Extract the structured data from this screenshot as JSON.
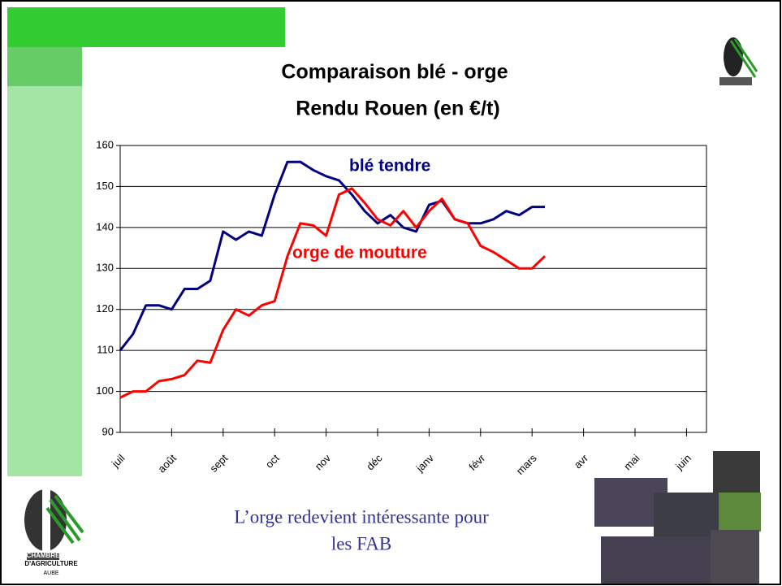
{
  "chart_data": {
    "type": "line",
    "title": [
      "Comparaison blé - orge",
      "Rendu Rouen (en €/t)"
    ],
    "categories": [
      "juil",
      null,
      null,
      null,
      "août",
      null,
      null,
      null,
      "sept",
      null,
      null,
      null,
      "oct",
      null,
      null,
      null,
      "nov",
      null,
      null,
      null,
      "déc",
      null,
      null,
      null,
      "janv",
      null,
      null,
      null,
      "févr",
      null,
      null,
      null,
      "mars",
      null,
      null,
      null,
      "avr",
      null,
      null,
      null,
      "mai",
      null,
      null,
      null,
      "juin",
      null,
      null,
      null
    ],
    "series": [
      {
        "name": "blé tendre",
        "color": "#000080",
        "values": [
          110,
          114,
          121,
          121,
          120,
          125,
          125,
          127,
          139,
          137,
          139,
          138,
          148,
          156,
          156,
          154,
          152.5,
          151.5,
          148,
          144,
          141,
          143,
          140,
          139,
          145.5,
          146.5,
          142,
          141,
          141,
          142,
          144,
          143,
          145,
          145,
          null,
          null,
          null,
          null,
          null,
          null,
          null,
          null,
          null,
          null,
          null,
          null,
          null,
          null
        ]
      },
      {
        "name": "orge de mouture",
        "color": "#ff0000",
        "values": [
          98.5,
          100,
          100,
          102.5,
          103,
          104,
          107.5,
          107,
          115,
          120,
          118.5,
          121,
          122,
          133,
          141,
          140.5,
          138,
          148,
          149.5,
          146,
          142,
          140.5,
          144,
          140,
          144,
          147,
          142,
          141,
          135.5,
          134,
          132,
          130,
          130,
          133,
          null,
          null,
          null,
          null,
          null,
          null,
          null,
          null,
          null,
          null,
          null,
          null,
          null,
          null
        ]
      }
    ],
    "ylim": [
      90,
      160
    ],
    "yticks": [
      90,
      100,
      110,
      120,
      130,
      140,
      150,
      160
    ],
    "grid": true
  },
  "caption": [
    "L’orge redevient intéressante pour",
    "les FAB"
  ],
  "logo": [
    "CHAMBRE",
    "D'AGRICULTURE",
    "AUBE"
  ]
}
